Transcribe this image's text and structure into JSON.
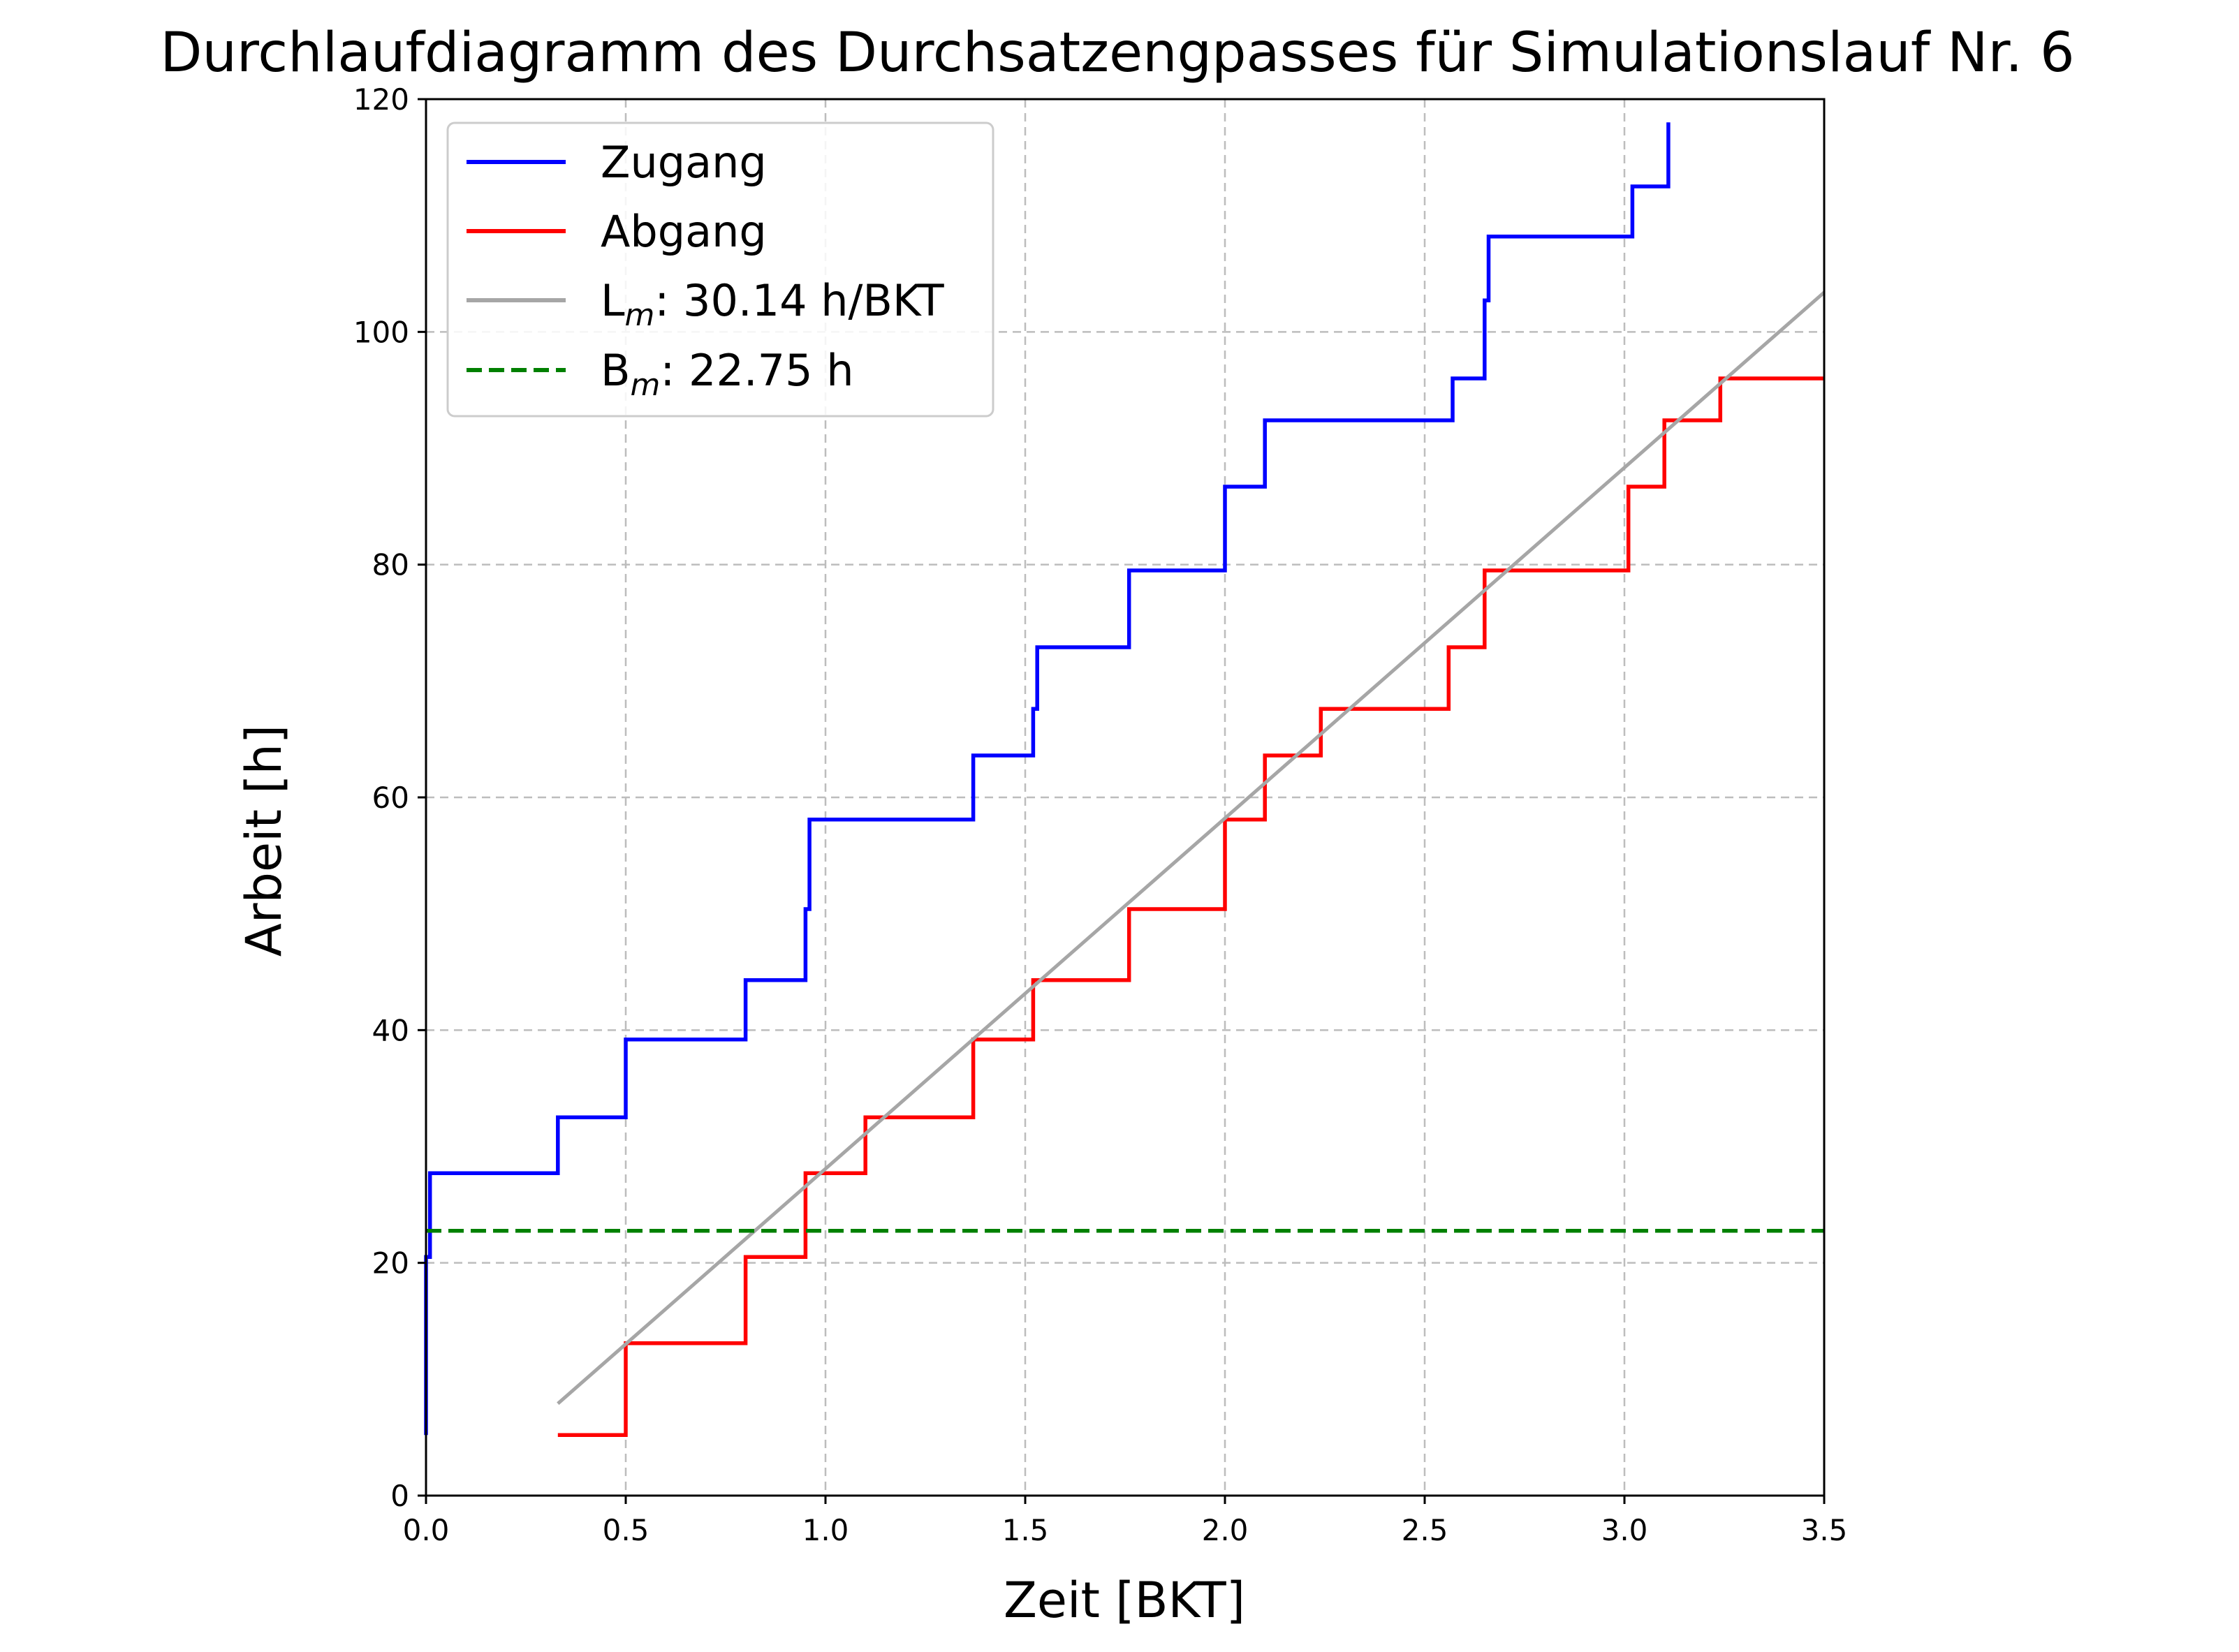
{
  "chart_data": {
    "type": "line",
    "title": "Durchlaufdiagramm des Durchsatzengpasses für Simulationslauf Nr. 6",
    "xlabel": "Zeit [BKT]",
    "ylabel": "Arbeit [h]",
    "xlim": [
      0.0,
      3.5
    ],
    "ylim": [
      0,
      120
    ],
    "x_ticks": [
      "0.0",
      "0.5",
      "1.0",
      "1.5",
      "2.0",
      "2.5",
      "3.0",
      "3.5"
    ],
    "y_ticks": [
      "0",
      "20",
      "40",
      "60",
      "80",
      "100",
      "120"
    ],
    "grid": true,
    "legend_position": "top-left",
    "series": [
      {
        "name": "Zugang",
        "label": "Zugang",
        "kind": "step",
        "color": "#0000ff",
        "style": "solid",
        "points": [
          [
            0.0,
            5.2
          ],
          [
            0.0,
            20.5
          ],
          [
            0.01,
            20.5
          ],
          [
            0.01,
            27.7
          ],
          [
            0.33,
            27.7
          ],
          [
            0.33,
            32.5
          ],
          [
            0.5,
            32.5
          ],
          [
            0.5,
            39.2
          ],
          [
            0.8,
            39.2
          ],
          [
            0.8,
            44.3
          ],
          [
            0.95,
            44.3
          ],
          [
            0.95,
            50.4
          ],
          [
            0.96,
            50.4
          ],
          [
            0.96,
            58.1
          ],
          [
            1.37,
            58.1
          ],
          [
            1.37,
            63.6
          ],
          [
            1.52,
            63.6
          ],
          [
            1.52,
            67.6
          ],
          [
            1.53,
            67.6
          ],
          [
            1.53,
            72.9
          ],
          [
            1.76,
            72.9
          ],
          [
            1.76,
            79.5
          ],
          [
            2.0,
            79.5
          ],
          [
            2.0,
            86.7
          ],
          [
            2.1,
            86.7
          ],
          [
            2.1,
            92.4
          ],
          [
            2.57,
            92.4
          ],
          [
            2.57,
            96.0
          ],
          [
            2.65,
            96.0
          ],
          [
            2.65,
            102.7
          ],
          [
            2.66,
            102.7
          ],
          [
            2.66,
            108.2
          ],
          [
            3.02,
            108.2
          ],
          [
            3.02,
            112.5
          ],
          [
            3.11,
            112.5
          ],
          [
            3.11,
            118.0
          ]
        ]
      },
      {
        "name": "Abgang",
        "label": "Abgang",
        "kind": "step",
        "color": "#ff0000",
        "style": "solid",
        "points": [
          [
            0.33,
            5.2
          ],
          [
            0.5,
            5.2
          ],
          [
            0.5,
            13.1
          ],
          [
            0.8,
            13.1
          ],
          [
            0.8,
            20.5
          ],
          [
            0.95,
            20.5
          ],
          [
            0.95,
            27.7
          ],
          [
            1.1,
            27.7
          ],
          [
            1.1,
            32.5
          ],
          [
            1.37,
            32.5
          ],
          [
            1.37,
            39.2
          ],
          [
            1.52,
            39.2
          ],
          [
            1.52,
            44.3
          ],
          [
            1.76,
            44.3
          ],
          [
            1.76,
            50.4
          ],
          [
            2.0,
            50.4
          ],
          [
            2.0,
            58.1
          ],
          [
            2.1,
            58.1
          ],
          [
            2.1,
            63.6
          ],
          [
            2.24,
            63.6
          ],
          [
            2.24,
            67.6
          ],
          [
            2.56,
            67.6
          ],
          [
            2.56,
            72.9
          ],
          [
            2.65,
            72.9
          ],
          [
            2.65,
            79.5
          ],
          [
            3.01,
            79.5
          ],
          [
            3.01,
            86.7
          ],
          [
            3.1,
            86.7
          ],
          [
            3.1,
            92.4
          ],
          [
            3.24,
            92.4
          ],
          [
            3.24,
            96.0
          ],
          [
            3.5,
            96.0
          ]
        ]
      },
      {
        "name": "L_m",
        "label_main": "L",
        "label_sub": "m",
        "label_rest": ": 30.14 h/BKT",
        "kind": "line",
        "color": "#a6a6a6",
        "style": "solid",
        "points": [
          [
            0.33,
            7.9
          ],
          [
            3.5,
            103.4
          ]
        ]
      },
      {
        "name": "B_m",
        "label_main": "B",
        "label_sub": "m",
        "label_rest": ": 22.75 h",
        "kind": "hline",
        "color": "#008000",
        "style": "dashed",
        "points": [
          [
            0.0,
            22.75
          ],
          [
            3.5,
            22.75
          ]
        ]
      }
    ]
  }
}
